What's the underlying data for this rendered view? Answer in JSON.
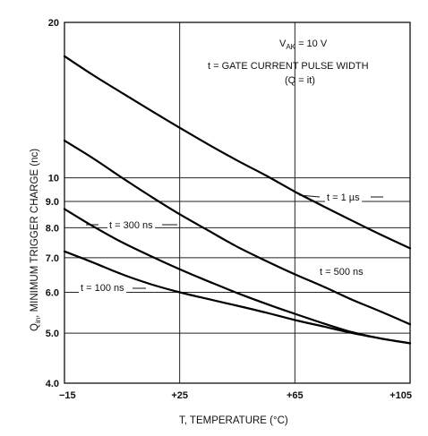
{
  "chart_data": {
    "type": "line",
    "xlabel_main": "T, TEMPERATURE (",
    "xlabel_unit": "°C",
    "xlabel_end": ")",
    "ylabel_pre": "Q",
    "ylabel_sub": "in",
    "ylabel_post": ", MINIMUM TRIGGER CHARGE (nc)",
    "x_ticks": [
      -15,
      25,
      65,
      105
    ],
    "x_tick_labels": [
      "−15",
      "+25",
      "+65",
      "+105"
    ],
    "y_ticks": [
      4,
      5,
      6,
      7,
      8,
      9,
      10,
      20
    ],
    "y_tick_labels": [
      "4.0",
      "5.0",
      "6.0",
      "7.0",
      "8.0",
      "9.0",
      "10",
      "20"
    ],
    "xlim": [
      -15,
      105
    ],
    "ylim": [
      4,
      20
    ],
    "y_scale": "log",
    "grid": true,
    "annotation": {
      "line1_pre": "V",
      "line1_sub": "AK",
      "line1_post": " = 10 V",
      "line2": "t = GATE CURRENT PULSE WIDTH",
      "line3": "(Q = it)"
    },
    "series": [
      {
        "name": "t = 1 µs",
        "x": [
          -15,
          -5,
          5,
          15,
          25,
          35,
          45,
          55,
          65,
          75,
          85,
          95,
          105
        ],
        "y": [
          17.2,
          15.8,
          14.6,
          13.5,
          12.5,
          11.6,
          10.8,
          10.1,
          9.4,
          8.8,
          8.25,
          7.75,
          7.3
        ]
      },
      {
        "name": "t = 500 ns",
        "x": [
          -15,
          -5,
          5,
          15,
          25,
          35,
          45,
          55,
          65,
          75,
          85,
          95,
          105
        ],
        "y": [
          11.8,
          10.9,
          10.0,
          9.2,
          8.5,
          7.9,
          7.35,
          6.9,
          6.5,
          6.15,
          5.8,
          5.5,
          5.2
        ]
      },
      {
        "name": "t = 300 ns",
        "x": [
          -15,
          -5,
          5,
          15,
          25,
          35,
          45,
          55,
          65,
          75,
          85,
          95,
          105
        ],
        "y": [
          8.7,
          8.05,
          7.5,
          7.05,
          6.65,
          6.3,
          5.98,
          5.7,
          5.45,
          5.22,
          5.02,
          4.88,
          4.78
        ]
      },
      {
        "name": "t = 100 ns",
        "x": [
          -15,
          -5,
          5,
          15,
          25,
          35,
          45,
          55,
          65,
          75,
          85,
          95,
          105
        ],
        "y": [
          7.2,
          6.85,
          6.5,
          6.22,
          6.0,
          5.82,
          5.65,
          5.48,
          5.3,
          5.15,
          5.0,
          4.88,
          4.78
        ]
      }
    ],
    "series_labels": [
      {
        "pre": "t = 1 ",
        "mu": "µ",
        "post": "s"
      },
      {
        "pre": "t = 500 ns",
        "mu": "",
        "post": ""
      },
      {
        "pre": "t = 300 ns",
        "mu": "",
        "post": ""
      },
      {
        "pre": "t = 100 ns",
        "mu": "",
        "post": ""
      }
    ]
  }
}
